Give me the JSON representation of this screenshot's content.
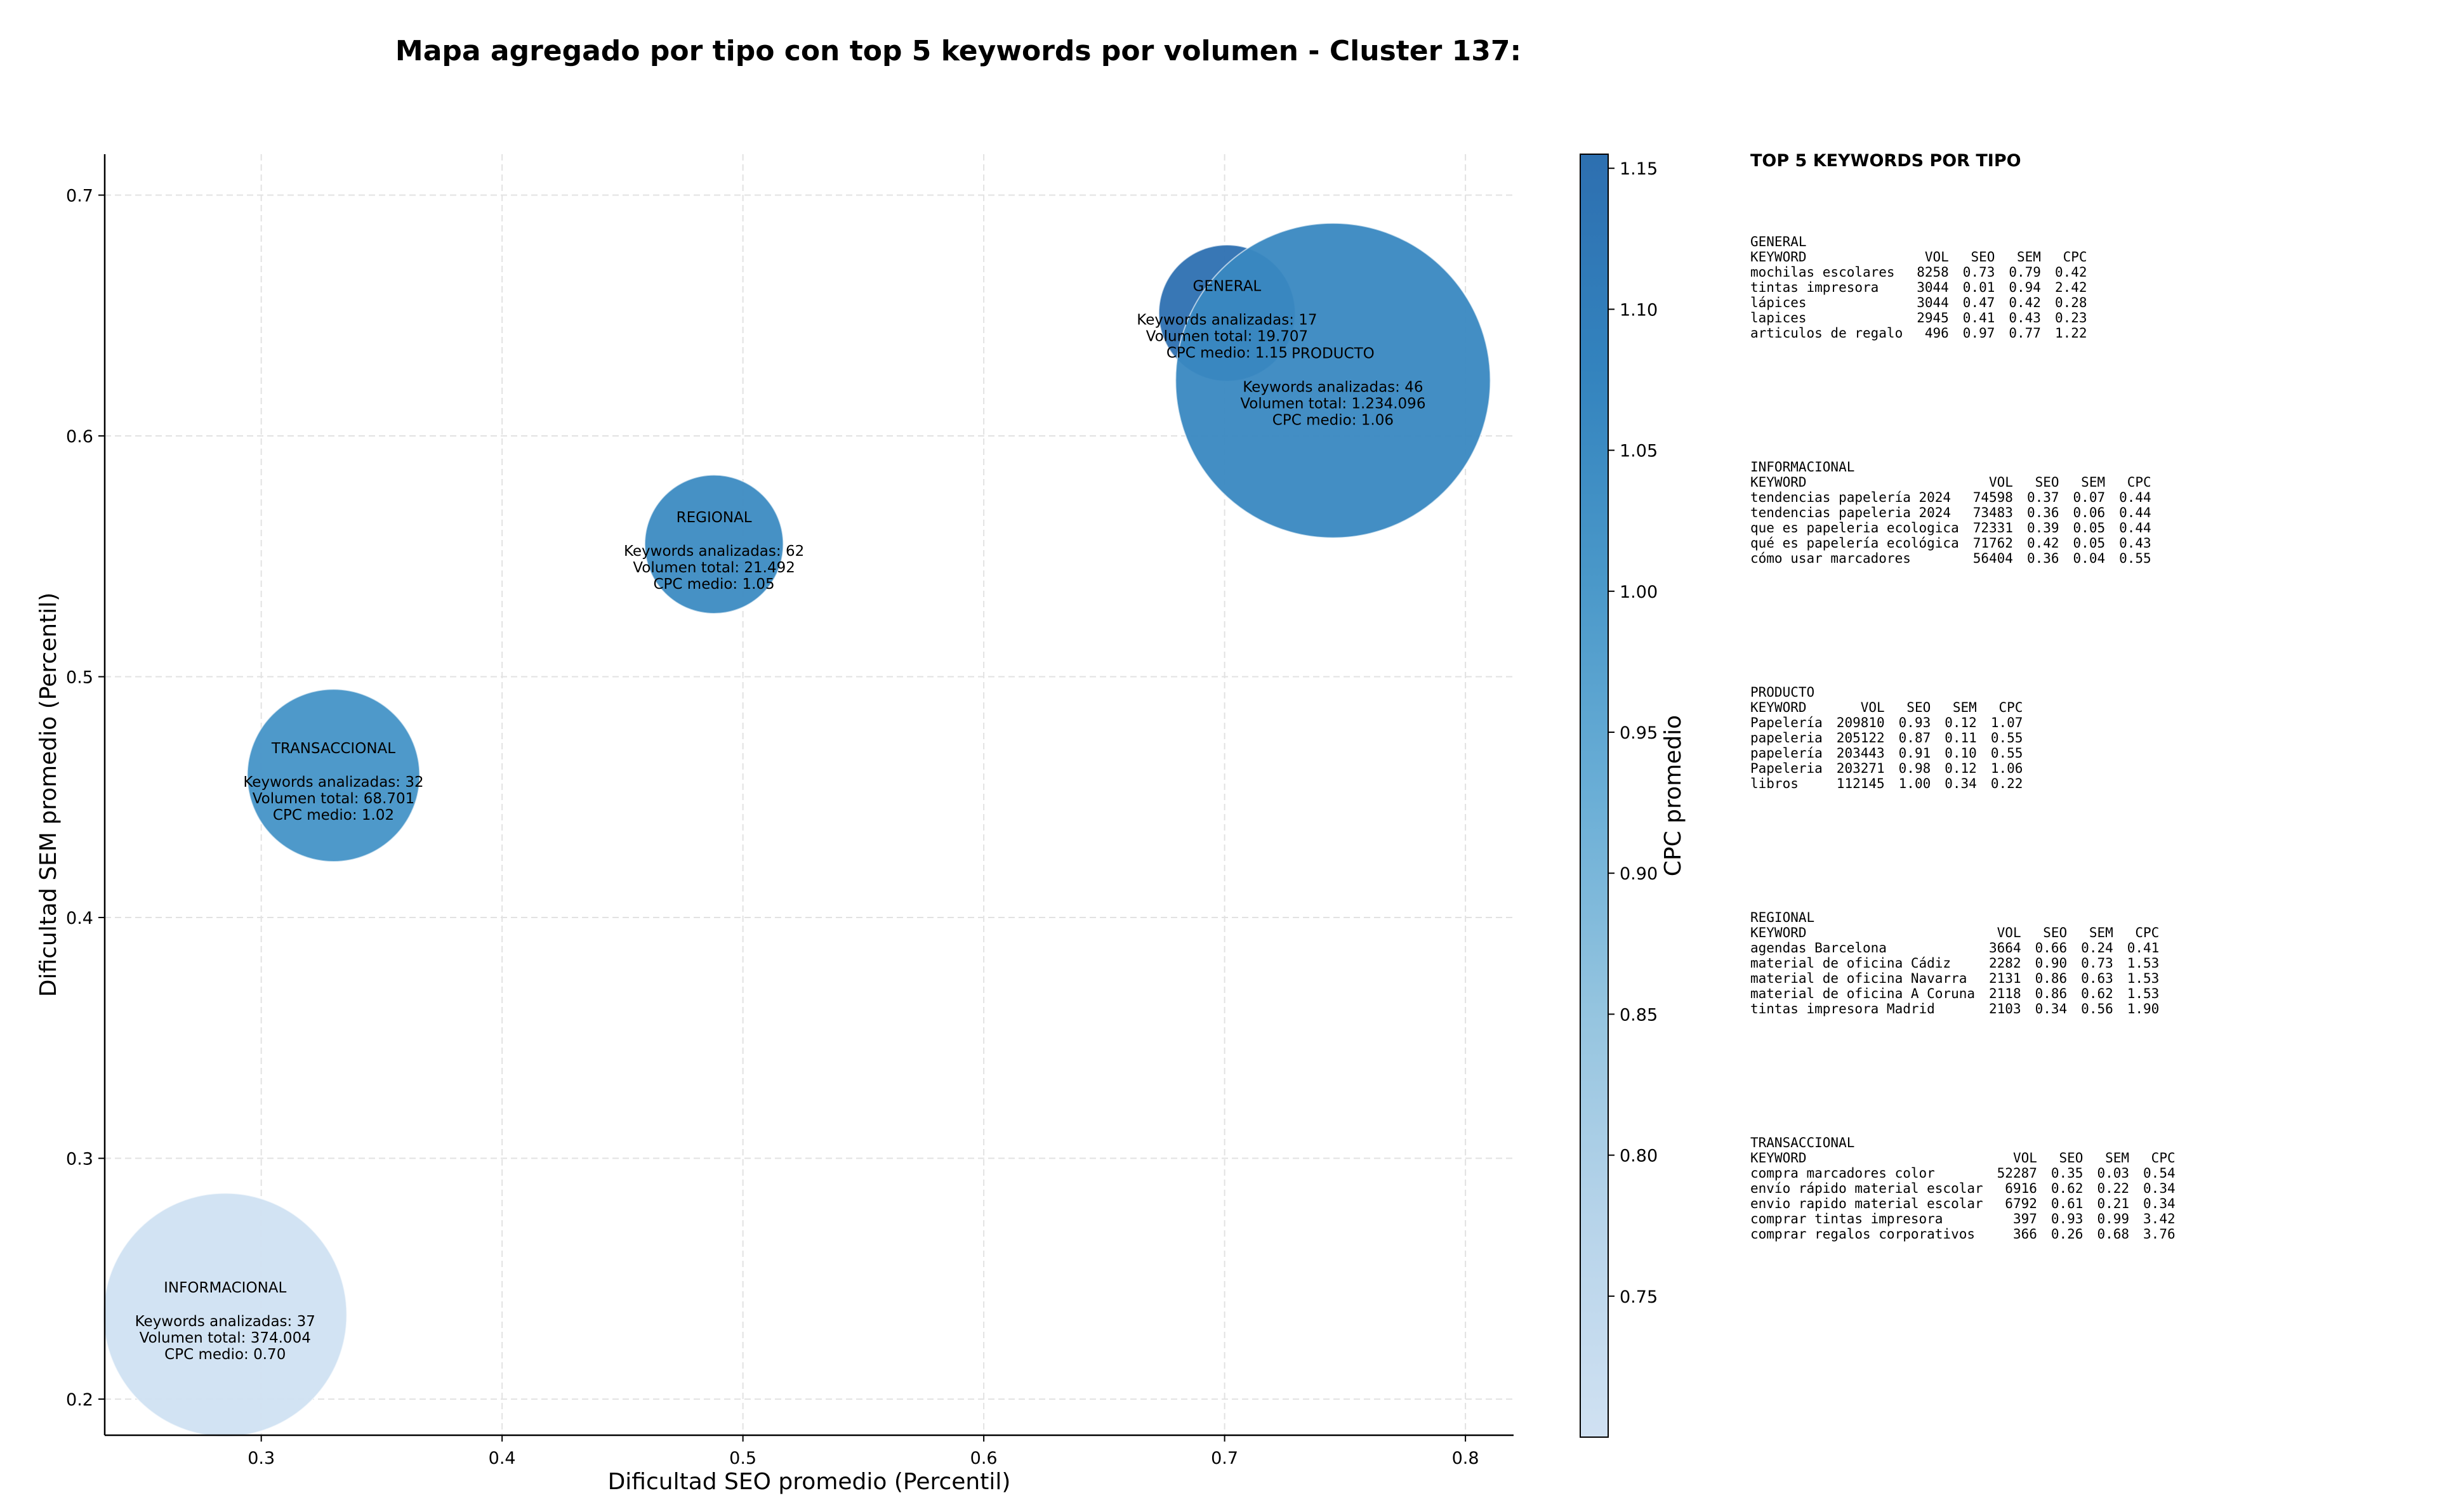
{
  "title": "Mapa agregado por tipo con top 5 keywords por volumen - Cluster 137:",
  "chart_data": {
    "type": "scatter",
    "xlabel": "Dificultad SEO promedio (Percentil)",
    "ylabel": "Dificultad SEM promedio (Percentil)",
    "xlim": [
      0.235,
      0.82
    ],
    "ylim": [
      0.185,
      0.717
    ],
    "xticks": [
      "0.3",
      "0.4",
      "0.5",
      "0.6",
      "0.7",
      "0.8"
    ],
    "yticks": [
      "0.2",
      "0.3",
      "0.4",
      "0.5",
      "0.6",
      "0.7"
    ],
    "grid": true,
    "colorbar": {
      "label": "CPC promedio",
      "range": [
        0.7,
        1.155
      ],
      "ticks": [
        "0.75",
        "0.80",
        "0.85",
        "0.90",
        "0.95",
        "1.00",
        "1.05",
        "1.10",
        "1.15"
      ],
      "colormap": [
        "#d0e1f2",
        "#b7d4ea",
        "#94c4df",
        "#6aaed6",
        "#4a98c9",
        "#3383be",
        "#2d6fb0"
      ]
    },
    "series": [
      {
        "label": "INFORMACIONAL",
        "x": 0.285,
        "y": 0.235,
        "cpc": 0.7,
        "volume": 374004,
        "line1": "Keywords analizadas: 37",
        "line2": "Volumen total: 374.004",
        "line3": "CPC medio: 0.70"
      },
      {
        "label": "TRANSACCIONAL",
        "x": 0.33,
        "y": 0.459,
        "cpc": 1.02,
        "volume": 68701,
        "line1": "Keywords analizadas: 32",
        "line2": "Volumen total: 68.701",
        "line3": "CPC medio: 1.02"
      },
      {
        "label": "REGIONAL",
        "x": 0.488,
        "y": 0.555,
        "cpc": 1.05,
        "volume": 21492,
        "line1": "Keywords analizadas: 62",
        "line2": "Volumen total: 21.492",
        "line3": "CPC medio: 1.05"
      },
      {
        "label": "GENERAL",
        "x": 0.701,
        "y": 0.651,
        "cpc": 1.15,
        "volume": 19707,
        "line1": "Keywords analizadas: 17",
        "line2": "Volumen total: 19.707",
        "line3": "CPC medio: 1.15"
      },
      {
        "label": "PRODUCTO",
        "x": 0.745,
        "y": 0.623,
        "cpc": 1.06,
        "volume": 1234096,
        "line1": "Keywords analizadas: 46",
        "line2": "Volumen total: 1.234.096",
        "line3": "CPC medio: 1.06"
      }
    ]
  },
  "tables_heading": "TOP 5 KEYWORDS POR TIPO",
  "table_columns": [
    "KEYWORD",
    "VOL",
    "SEO",
    "SEM",
    "CPC"
  ],
  "tables": [
    {
      "name": "GENERAL",
      "rows": [
        [
          "mochilas escolares",
          "8258",
          "0.73",
          "0.79",
          "0.42"
        ],
        [
          "tintas impresora",
          "3044",
          "0.01",
          "0.94",
          "2.42"
        ],
        [
          "lápices",
          "3044",
          "0.47",
          "0.42",
          "0.28"
        ],
        [
          "lapices",
          "2945",
          "0.41",
          "0.43",
          "0.23"
        ],
        [
          "articulos de regalo",
          "496",
          "0.97",
          "0.77",
          "1.22"
        ]
      ]
    },
    {
      "name": "INFORMACIONAL",
      "rows": [
        [
          "tendencias papelería 2024",
          "74598",
          "0.37",
          "0.07",
          "0.44"
        ],
        [
          "tendencias papeleria 2024",
          "73483",
          "0.36",
          "0.06",
          "0.44"
        ],
        [
          "que es papeleria ecologica",
          "72331",
          "0.39",
          "0.05",
          "0.44"
        ],
        [
          "qué es papelería ecológica",
          "71762",
          "0.42",
          "0.05",
          "0.43"
        ],
        [
          "cómo usar marcadores",
          "56404",
          "0.36",
          "0.04",
          "0.55"
        ]
      ]
    },
    {
      "name": "PRODUCTO",
      "rows": [
        [
          "Papelería",
          "209810",
          "0.93",
          "0.12",
          "1.07"
        ],
        [
          "papeleria",
          "205122",
          "0.87",
          "0.11",
          "0.55"
        ],
        [
          "papelería",
          "203443",
          "0.91",
          "0.10",
          "0.55"
        ],
        [
          "Papeleria",
          "203271",
          "0.98",
          "0.12",
          "1.06"
        ],
        [
          "libros",
          "112145",
          "1.00",
          "0.34",
          "0.22"
        ]
      ]
    },
    {
      "name": "REGIONAL",
      "rows": [
        [
          "agendas Barcelona",
          "3664",
          "0.66",
          "0.24",
          "0.41"
        ],
        [
          "material de oficina Cádiz",
          "2282",
          "0.90",
          "0.73",
          "1.53"
        ],
        [
          "material de oficina Navarra",
          "2131",
          "0.86",
          "0.63",
          "1.53"
        ],
        [
          "material de oficina A Coruna",
          "2118",
          "0.86",
          "0.62",
          "1.53"
        ],
        [
          "tintas impresora Madrid",
          "2103",
          "0.34",
          "0.56",
          "1.90"
        ]
      ]
    },
    {
      "name": "TRANSACCIONAL",
      "rows": [
        [
          "compra marcadores color",
          "52287",
          "0.35",
          "0.03",
          "0.54"
        ],
        [
          "envío rápido material escolar",
          "6916",
          "0.62",
          "0.22",
          "0.34"
        ],
        [
          "envio rapido material escolar",
          "6792",
          "0.61",
          "0.21",
          "0.34"
        ],
        [
          "comprar tintas impresora",
          "397",
          "0.93",
          "0.99",
          "3.42"
        ],
        [
          "comprar regalos corporativos",
          "366",
          "0.26",
          "0.68",
          "3.76"
        ]
      ]
    }
  ]
}
